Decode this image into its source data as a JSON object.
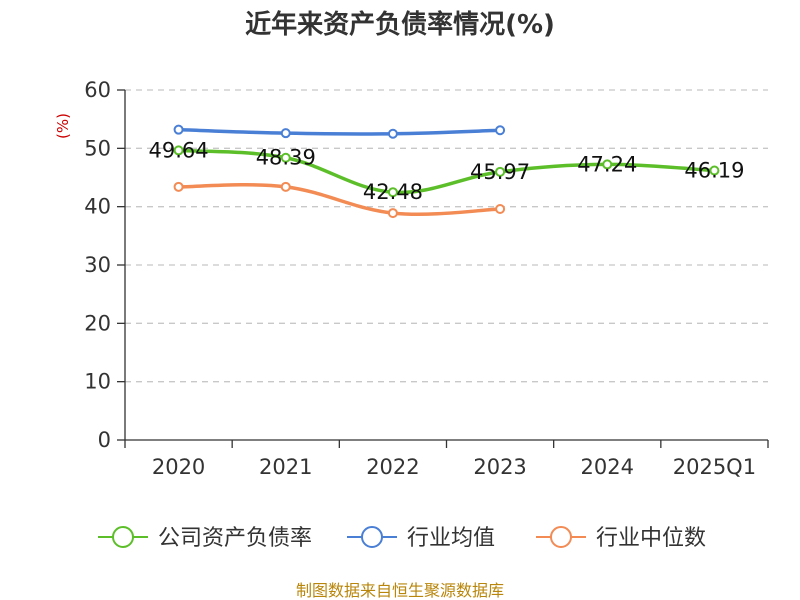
{
  "chart_data": {
    "type": "line",
    "title": "近年来资产负债率情况(%)",
    "ylabel": "(%)",
    "categories": [
      "2020",
      "2021",
      "2022",
      "2023",
      "2024",
      "2025Q1"
    ],
    "ylim": [
      0,
      60
    ],
    "yticks": [
      0,
      10,
      20,
      30,
      40,
      50,
      60
    ],
    "grid": true,
    "legend_position": "bottom",
    "series": [
      {
        "name": "公司资产负债率",
        "color": "#5cbf29",
        "values": [
          49.64,
          48.39,
          42.48,
          45.97,
          47.24,
          46.19
        ],
        "labels": [
          "49.64",
          "48.39",
          "42.48",
          "45.97",
          "47.24",
          "46.19"
        ]
      },
      {
        "name": "行业均值",
        "color": "#4a7fd6",
        "values": [
          53.2,
          52.6,
          52.5,
          53.1,
          null,
          null
        ]
      },
      {
        "name": "行业中位数",
        "color": "#f28b54",
        "values": [
          43.4,
          43.4,
          38.9,
          39.6,
          null,
          null
        ]
      }
    ]
  },
  "footer": "制图数据来自恒生聚源数据库"
}
